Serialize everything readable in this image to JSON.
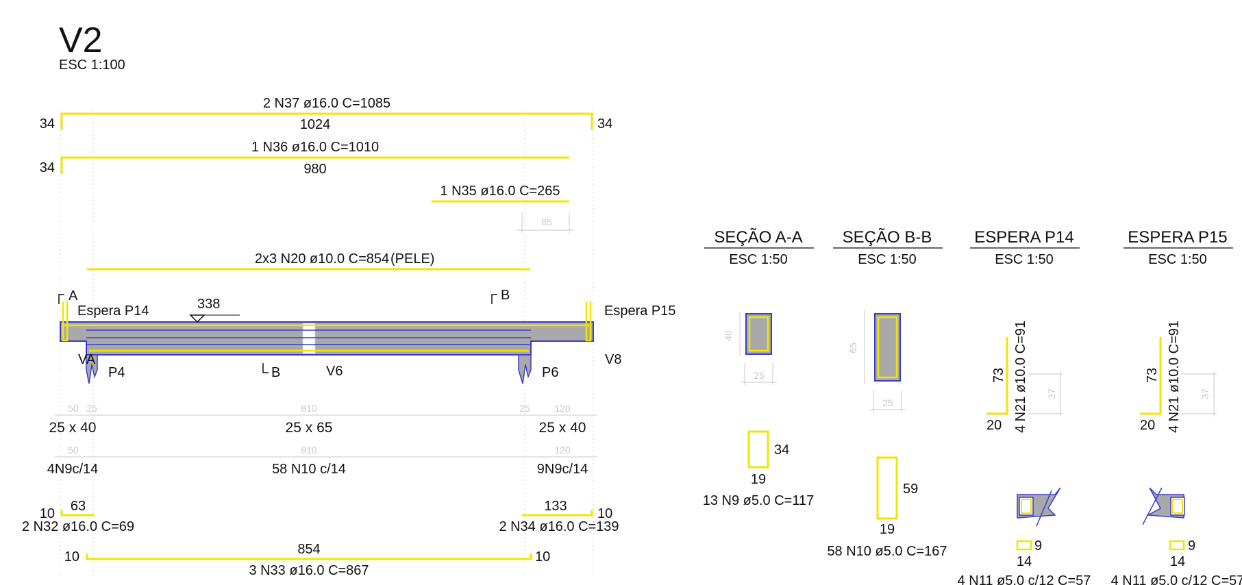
{
  "beam": {
    "title": "V2",
    "scale": "ESC 1:100",
    "bars": {
      "n37": {
        "label": "2 N37 ø16.0 C=1085",
        "length": "1024",
        "hook_left": "34",
        "hook_right": "34"
      },
      "n36": {
        "label": "1 N36 ø16.0 C=1010",
        "length": "980",
        "hook_left": "34"
      },
      "n35": {
        "label": "1 N35 ø16.0 C=265",
        "dim": "85"
      },
      "n20": {
        "label": "2x3 N20 ø10.0 C=854",
        "note": "(PELE)"
      },
      "n32": {
        "label": "2 N32 ø16.0 C=69",
        "length": "63",
        "hook": "10"
      },
      "n34": {
        "label": "2 N34 ø16.0 C=139",
        "length": "133",
        "hook": "10"
      },
      "n33": {
        "label": "3 N33 ø16.0 C=867",
        "length": "854",
        "hook_left": "10",
        "hook_right": "10"
      }
    },
    "elevation": {
      "cut_a": "A",
      "cut_b": "B",
      "espera_left": "Espera P14",
      "espera_right": "Espera P15",
      "level": "338",
      "va": "VA",
      "p4": "P4",
      "p6": "P6",
      "v6": "V6",
      "v8": "V8"
    },
    "spans": {
      "dims1": [
        "50",
        "25",
        "810",
        "25",
        "120"
      ],
      "sections": [
        "25 x 40",
        "25 x 65",
        "25 x 40"
      ],
      "dims2": [
        "50",
        "810",
        "120"
      ],
      "stirrups": [
        "4N9c/14",
        "58 N10 c/14",
        "9N9c/14"
      ]
    }
  },
  "section_aa": {
    "title": "SEÇÃO A-A",
    "scale": "ESC 1:50",
    "height": "40",
    "width": "25",
    "stirrup_h": "34",
    "stirrup_w": "19",
    "stirrup_label": "13 N9 ø5.0 C=117"
  },
  "section_bb": {
    "title": "SEÇÃO B-B",
    "scale": "ESC 1:50",
    "height": "65",
    "width": "25",
    "stirrup_h": "59",
    "stirrup_w": "19",
    "stirrup_label": "58 N10 ø5.0 C=167"
  },
  "espera_p14": {
    "title": "ESPERA P14",
    "scale": "ESC 1:50",
    "bar_v": "73",
    "bar_h": "20",
    "bar_label": "4 N21 ø10.0 C=91",
    "dim": "37",
    "stirrup_a": "9",
    "stirrup_b": "14",
    "stirrup_label": "4 N11 ø5.0 c/12 C=57"
  },
  "espera_p15": {
    "title": "ESPERA P15",
    "scale": "ESC 1:50",
    "bar_v": "73",
    "bar_h": "20",
    "bar_label": "4 N21 ø10.0 C=91",
    "dim": "37",
    "stirrup_a": "9",
    "stirrup_b": "14",
    "stirrup_label": "4 N11 ø5.0 c/12 C=57"
  },
  "colors": {
    "rebar": "#f2e600",
    "outline": "#3b3bd1",
    "concrete": "#a9a9a9",
    "dimension": "#c8c8c8",
    "text": "#111111"
  }
}
